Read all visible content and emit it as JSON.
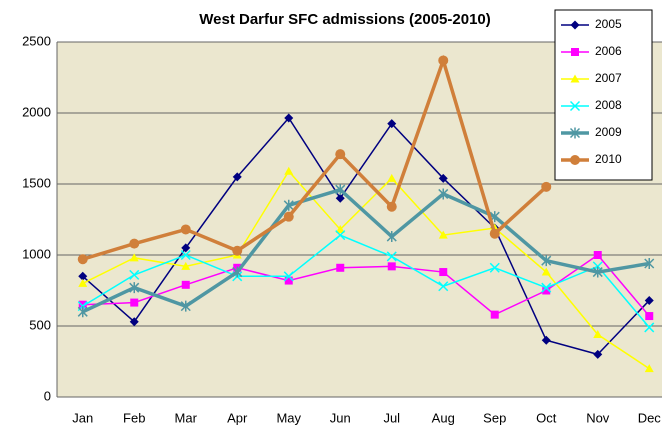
{
  "chart_data": {
    "type": "line",
    "title": "West Darfur SFC admissions (2005-2010)",
    "categories": [
      "Jan",
      "Feb",
      "Mar",
      "Apr",
      "May",
      "Jun",
      "Jul",
      "Aug",
      "Sep",
      "Oct",
      "Nov",
      "Dec"
    ],
    "ylim": [
      0,
      2500
    ],
    "yticks": [
      0,
      500,
      1000,
      1500,
      2000,
      2500
    ],
    "grid": true,
    "legend": "top-right",
    "series": [
      {
        "name": "2005",
        "color": "#000080",
        "marker": "diamond",
        "values": [
          850,
          530,
          1050,
          1550,
          1965,
          1400,
          1925,
          1540,
          1190,
          400,
          300,
          680
        ]
      },
      {
        "name": "2006",
        "color": "#ff00ff",
        "marker": "square",
        "values": [
          650,
          665,
          790,
          910,
          820,
          910,
          920,
          880,
          580,
          750,
          1000,
          570
        ]
      },
      {
        "name": "2007",
        "color": "#ffff00",
        "marker": "triangle",
        "values": [
          800,
          980,
          920,
          1000,
          1590,
          1180,
          1540,
          1140,
          1190,
          880,
          440,
          200
        ]
      },
      {
        "name": "2008",
        "color": "#00ffff",
        "marker": "x",
        "values": [
          640,
          860,
          1000,
          850,
          850,
          1140,
          990,
          780,
          910,
          770,
          920,
          490
        ]
      },
      {
        "name": "2009",
        "color": "#4f97a3",
        "marker": "star",
        "values": [
          600,
          770,
          640,
          880,
          1350,
          1460,
          1130,
          1430,
          1270,
          960,
          880,
          940
        ]
      },
      {
        "name": "2010",
        "color": "#d07f3a",
        "marker": "circle",
        "values": [
          970,
          1080,
          1180,
          1030,
          1270,
          1710,
          1340,
          2370,
          1150,
          1480,
          null,
          null
        ]
      }
    ]
  }
}
